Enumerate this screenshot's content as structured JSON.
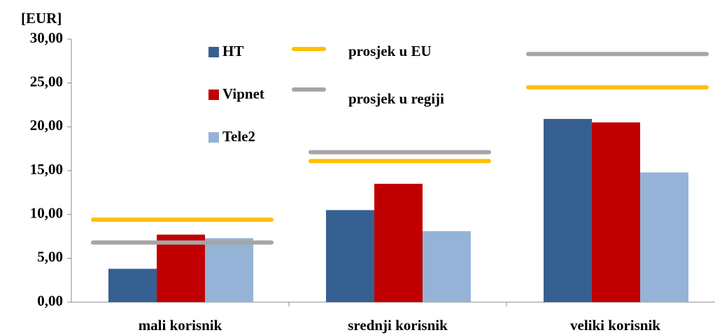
{
  "chart_data": {
    "type": "bar",
    "y_axis_label": "[EUR]",
    "categories": [
      "mali korisnik",
      "srednji korisnik",
      "veliki korisnik"
    ],
    "series": [
      {
        "name": "HT",
        "color": "#376092",
        "values": [
          3.8,
          10.5,
          20.9
        ]
      },
      {
        "name": "Vipnet",
        "color": "#c00000",
        "values": [
          7.7,
          13.5,
          20.5
        ]
      },
      {
        "name": "Tele2",
        "color": "#95b3d7",
        "values": [
          7.3,
          8.1,
          14.8
        ]
      },
      {
        "name": "prosjek u EU",
        "color": "#ffc000",
        "type": "hline",
        "values": [
          9.4,
          16.1,
          24.5
        ]
      },
      {
        "name": "prosjek u regiji",
        "color": "#a6a6a6",
        "type": "hline",
        "values": [
          6.8,
          17.1,
          28.3
        ]
      }
    ],
    "ylim": [
      0,
      30
    ],
    "yticks": [
      {
        "value": 0,
        "label": "0,00"
      },
      {
        "value": 5,
        "label": "5,00"
      },
      {
        "value": 10,
        "label": "10,00"
      },
      {
        "value": 15,
        "label": "15,00"
      },
      {
        "value": 20,
        "label": "20,00"
      },
      {
        "value": 25,
        "label": "25,00"
      },
      {
        "value": 30,
        "label": "30,00"
      }
    ],
    "grid": false
  }
}
